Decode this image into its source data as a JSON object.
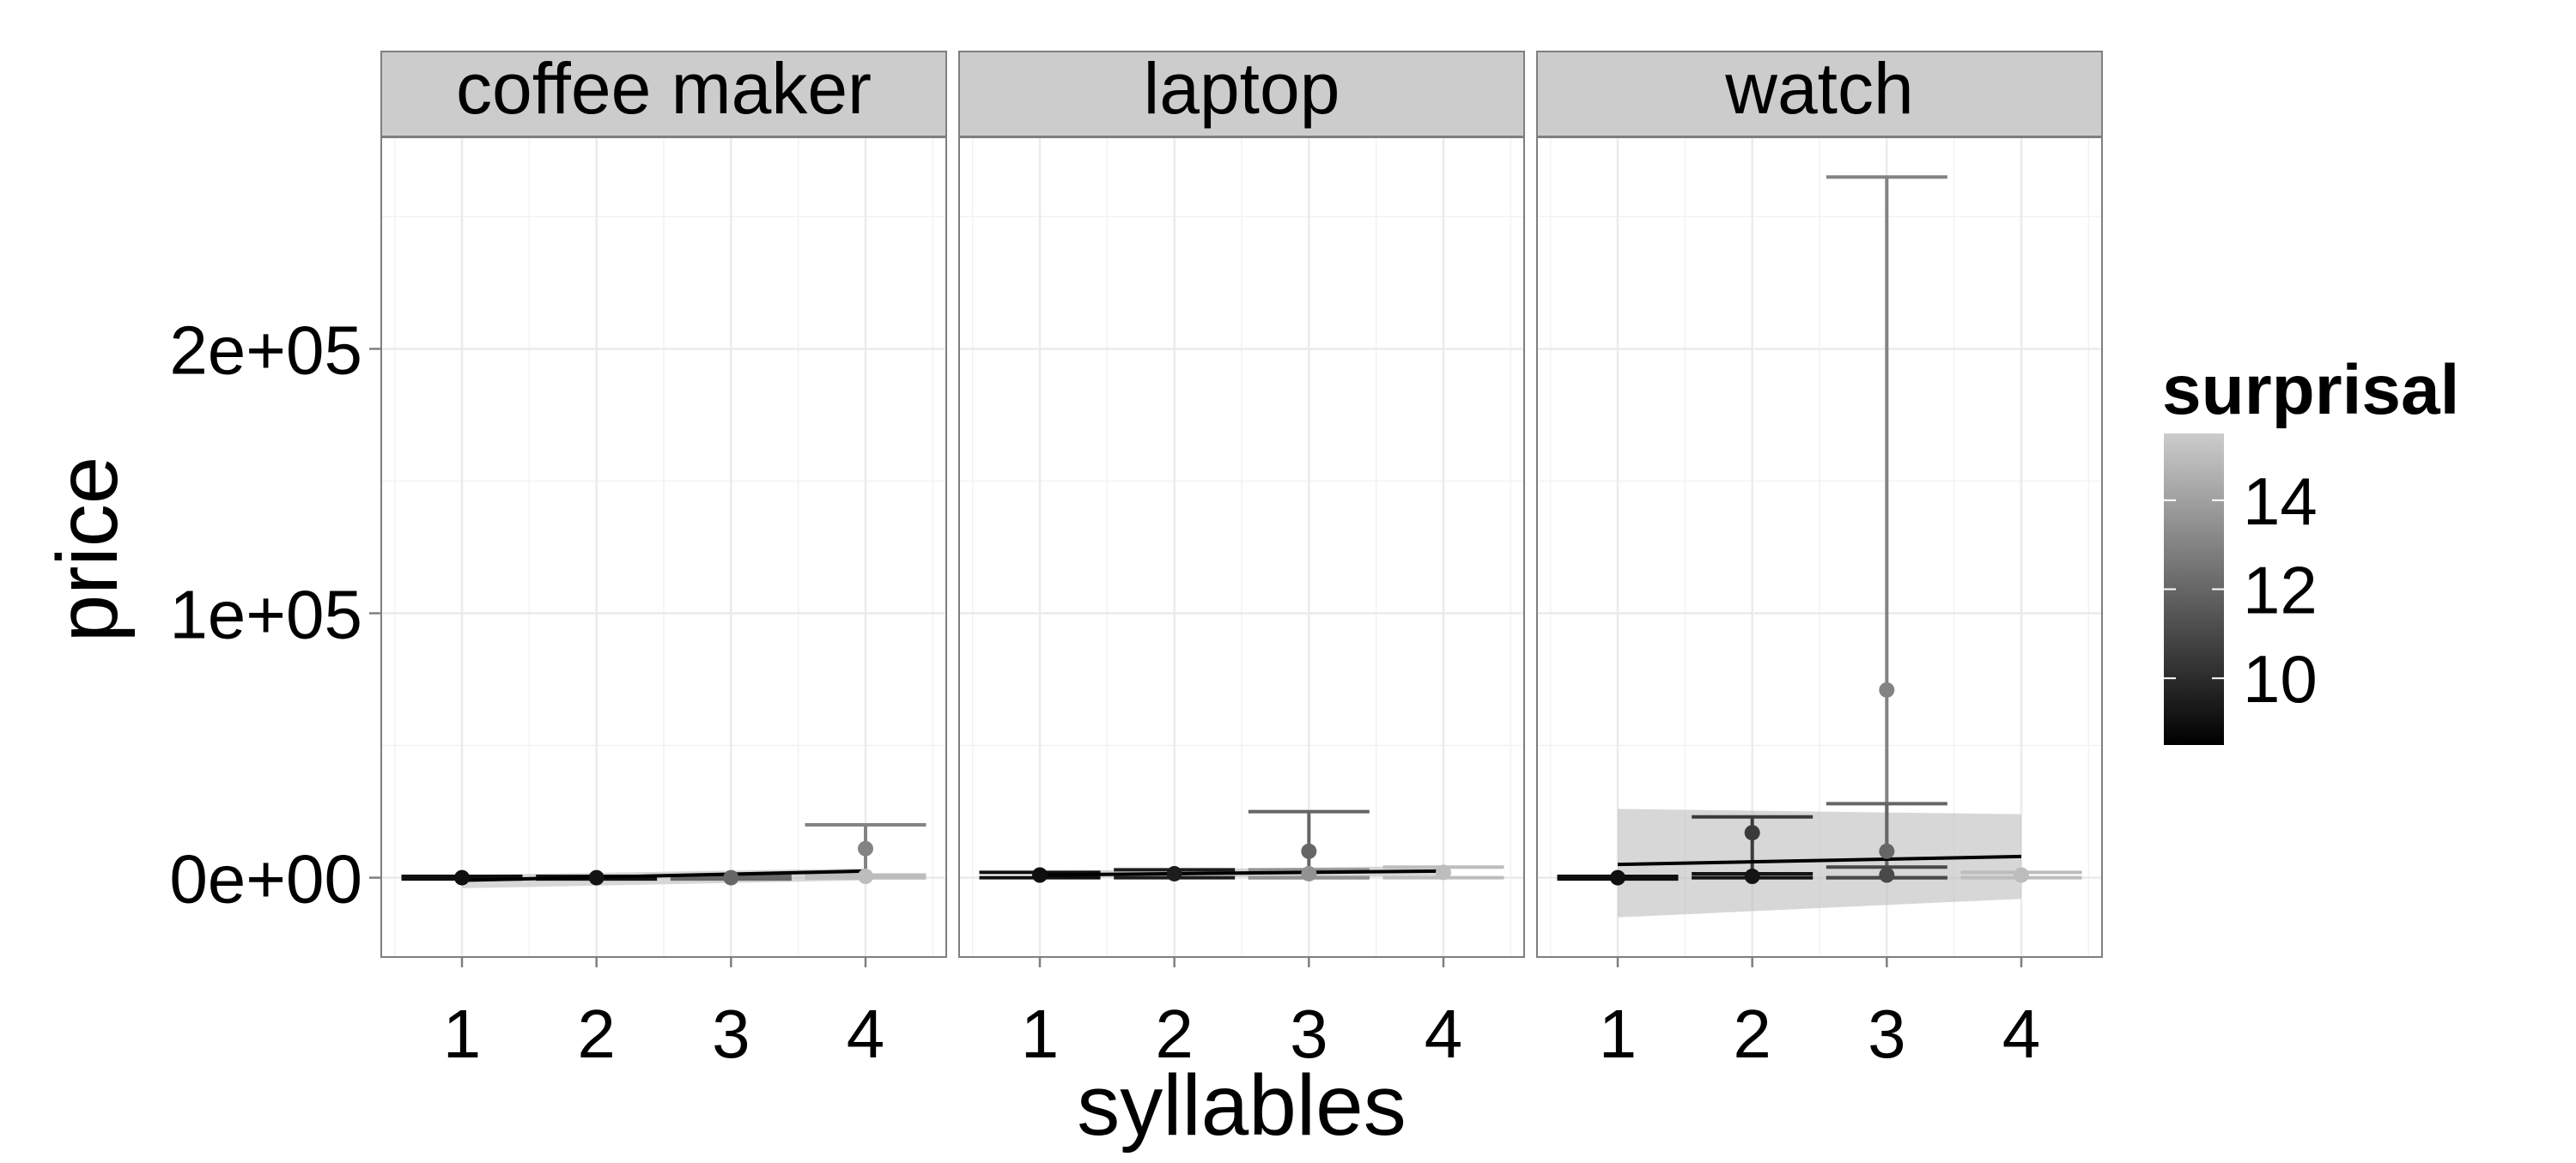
{
  "chart_data": {
    "type": "scatter",
    "facet_by": "product",
    "xlabel": "syllables",
    "ylabel": "price",
    "x_ticks": [
      1,
      2,
      3,
      4
    ],
    "y_ticks": [
      {
        "value": 0,
        "label": "0e+00"
      },
      {
        "value": 100000,
        "label": "1e+05"
      },
      {
        "value": 200000,
        "label": "2e+05"
      }
    ],
    "ylim": [
      -30000,
      280000
    ],
    "xlim": [
      0.4,
      4.6
    ],
    "grid": true,
    "legend": {
      "title": "surprisal",
      "placement": "right",
      "type": "colorbar",
      "range": [
        8.5,
        15.5
      ],
      "ticks": [
        10,
        12,
        14
      ],
      "color_low": "#000000",
      "color_high": "#cccccc"
    },
    "panels": [
      {
        "label": "coffee maker",
        "points": [
          {
            "x": 1,
            "y": 0,
            "surprisal": 9.0
          },
          {
            "x": 2,
            "y": 0,
            "surprisal": 9.2
          },
          {
            "x": 3,
            "y": 0,
            "surprisal": 12.0
          },
          {
            "x": 4,
            "y": 11000,
            "surprisal": 13.0
          },
          {
            "x": 4,
            "y": 500,
            "surprisal": 15.0
          }
        ],
        "errorbars": [
          {
            "x": 1,
            "ymin": -500,
            "ymax": 500,
            "surprisal": 9.0
          },
          {
            "x": 2,
            "ymin": -500,
            "ymax": 500,
            "surprisal": 9.2
          },
          {
            "x": 3,
            "ymin": -500,
            "ymax": 500,
            "surprisal": 12.0
          },
          {
            "x": 4,
            "ymin": 0,
            "ymax": 20000,
            "surprisal": 13.0
          },
          {
            "x": 4,
            "ymin": 0,
            "ymax": 1000,
            "surprisal": 15.0
          }
        ],
        "fit": {
          "y_start": -1000,
          "y_end": 2500
        },
        "band": {
          "lo_start": -4000,
          "hi_start": 1000,
          "lo_end": -1000,
          "hi_end": 3500
        }
      },
      {
        "label": "laptop",
        "points": [
          {
            "x": 1,
            "y": 1000,
            "surprisal": 9.0
          },
          {
            "x": 2,
            "y": 1500,
            "surprisal": 9.5
          },
          {
            "x": 3,
            "y": 10000,
            "surprisal": 12.0
          },
          {
            "x": 3,
            "y": 1500,
            "surprisal": 13.5
          },
          {
            "x": 4,
            "y": 2000,
            "surprisal": 15.0
          }
        ],
        "errorbars": [
          {
            "x": 1,
            "ymin": 0,
            "ymax": 2000,
            "surprisal": 9.0
          },
          {
            "x": 2,
            "ymin": 0,
            "ymax": 3000,
            "surprisal": 9.5
          },
          {
            "x": 3,
            "ymin": 0,
            "ymax": 25000,
            "surprisal": 12.0
          },
          {
            "x": 3,
            "ymin": 0,
            "ymax": 3000,
            "surprisal": 13.5
          },
          {
            "x": 4,
            "ymin": 0,
            "ymax": 4000,
            "surprisal": 15.0
          }
        ],
        "fit": {
          "y_start": 1000,
          "y_end": 2500
        },
        "band": {
          "lo_start": 0,
          "hi_start": 2500,
          "lo_end": 500,
          "hi_end": 4500
        }
      },
      {
        "label": "watch",
        "points": [
          {
            "x": 1,
            "y": 0,
            "surprisal": 9.0
          },
          {
            "x": 2,
            "y": 17000,
            "surprisal": 10.5
          },
          {
            "x": 2,
            "y": 500,
            "surprisal": 9.2
          },
          {
            "x": 3,
            "y": 71000,
            "surprisal": 13.0
          },
          {
            "x": 3,
            "y": 10000,
            "surprisal": 12.0
          },
          {
            "x": 3,
            "y": 1000,
            "surprisal": 11.0
          },
          {
            "x": 4,
            "y": 1000,
            "surprisal": 15.0
          }
        ],
        "errorbars": [
          {
            "x": 1,
            "ymin": -500,
            "ymax": 500,
            "surprisal": 9.0
          },
          {
            "x": 2,
            "ymin": 0,
            "ymax": 23000,
            "surprisal": 10.5
          },
          {
            "x": 2,
            "ymin": 0,
            "ymax": 1500,
            "surprisal": 9.2
          },
          {
            "x": 3,
            "ymin": 0,
            "ymax": 265000,
            "surprisal": 13.0
          },
          {
            "x": 3,
            "ymin": 0,
            "ymax": 28000,
            "surprisal": 12.0
          },
          {
            "x": 3,
            "ymin": 0,
            "ymax": 4000,
            "surprisal": 11.0
          },
          {
            "x": 4,
            "ymin": 0,
            "ymax": 2000,
            "surprisal": 15.0
          }
        ],
        "fit": {
          "y_start": 5000,
          "y_end": 8000
        },
        "band": {
          "lo_start": -15000,
          "hi_start": 26000,
          "lo_end": -8000,
          "hi_end": 24000
        }
      }
    ]
  }
}
